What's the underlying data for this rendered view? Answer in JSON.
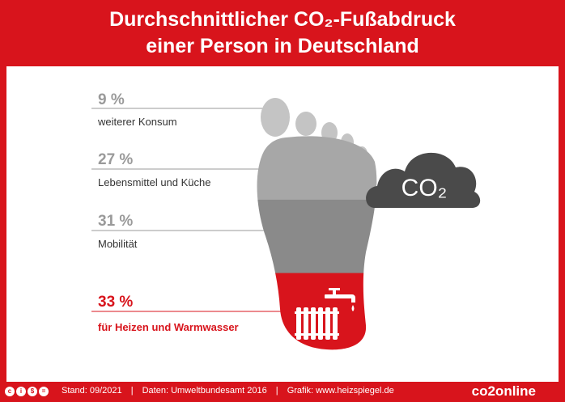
{
  "header": {
    "title_line1": "Durchschnittlicher CO₂-Fußabdruck",
    "title_line2": "einer Person in Deutschland"
  },
  "chart_data": {
    "type": "table",
    "categories": [
      "weiterer Konsum",
      "Lebensmittel und Küche",
      "Mobilität",
      "für Heizen und Warmwasser"
    ],
    "values": [
      9,
      27,
      31,
      33
    ],
    "value_labels": [
      "9 %",
      "27 %",
      "31 %",
      "33 %"
    ],
    "colors": [
      "#c4c4c4",
      "#a7a7a7",
      "#8a8a8a",
      "#d8141c"
    ],
    "cloud_label": "CO₂"
  },
  "footer": {
    "stand": "Stand: 09/2021",
    "daten": "Daten: Umweltbundesamt 2016",
    "grafik": "Grafik: www.heizspiegel.de",
    "sep": "|",
    "brand": "co2online"
  },
  "colors": {
    "brand_red": "#d8141c",
    "cloud": "#4a4a4a",
    "text_dark": "#333333"
  }
}
